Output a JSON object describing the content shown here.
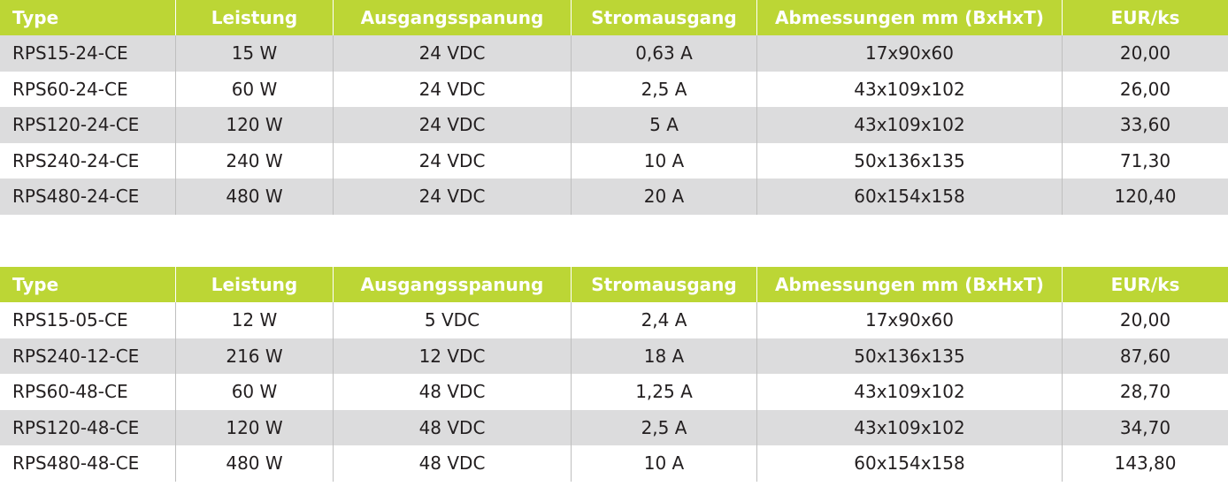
{
  "tables": [
    {
      "headers": [
        "Type",
        "Leistung",
        "Ausgangsspanung",
        "Stromausgang",
        "Abmessungen mm (BxHxT)",
        "EUR/ks"
      ],
      "rows": [
        [
          "RPS15-24-CE",
          "15 W",
          "24 VDC",
          "0,63 A",
          "17x90x60",
          "20,00"
        ],
        [
          "RPS60-24-CE",
          "60 W",
          "24 VDC",
          "2,5 A",
          "43x109x102",
          "26,00"
        ],
        [
          "RPS120-24-CE",
          "120 W",
          "24 VDC",
          "5 A",
          "43x109x102",
          "33,60"
        ],
        [
          "RPS240-24-CE",
          "240 W",
          "24 VDC",
          "10 A",
          "50x136x135",
          "71,30"
        ],
        [
          "RPS480-24-CE",
          "480 W",
          "24 VDC",
          "20 A",
          "60x154x158",
          "120,40"
        ]
      ]
    },
    {
      "headers": [
        "Type",
        "Leistung",
        "Ausgangsspanung",
        "Stromausgang",
        "Abmessungen mm (BxHxT)",
        "EUR/ks"
      ],
      "rows": [
        [
          "RPS15-05-CE",
          "12 W",
          "5 VDC",
          "2,4 A",
          "17x90x60",
          "20,00"
        ],
        [
          "RPS240-12-CE",
          "216 W",
          "12 VDC",
          "18 A",
          "50x136x135",
          "87,60"
        ],
        [
          "RPS60-48-CE",
          "60 W",
          "48 VDC",
          "1,25 A",
          "43x109x102",
          "28,70"
        ],
        [
          "RPS120-48-CE",
          "120 W",
          "48 VDC",
          "2,5 A",
          "43x109x102",
          "34,70"
        ],
        [
          "RPS480-48-CE",
          "480 W",
          "48 VDC",
          "10 A",
          "60x154x158",
          "143,80"
        ]
      ]
    }
  ],
  "colors": {
    "header_bg": "#bcd635",
    "header_text": "#ffffff",
    "stripe_bg": "#dcdcdd",
    "row_bg": "#ffffff",
    "text": "#231f20"
  }
}
